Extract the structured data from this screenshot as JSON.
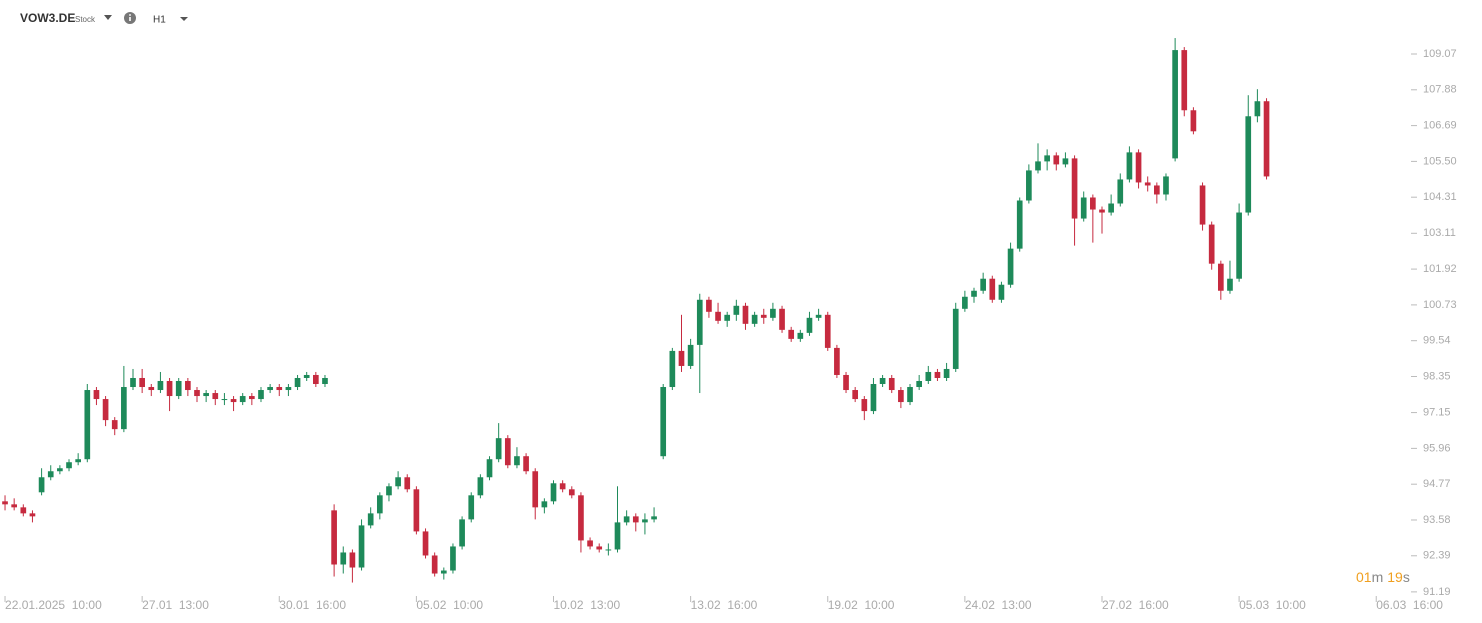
{
  "header": {
    "symbol": "VOW3.DE",
    "kind": "Stock",
    "timeframe": "H1",
    "countdown": {
      "minutes": "01",
      "minutes_unit": "m",
      "seconds": "19",
      "seconds_unit": "s"
    }
  },
  "chart_data": {
    "type": "candlestick",
    "up_color": "#1e8a5a",
    "down_color": "#c62a3f",
    "xlim": [
      -0.55,
      152.6
    ],
    "xticks": [
      {
        "value": 0,
        "label": "22.01.2025  10:00"
      },
      {
        "value": 15,
        "label": "27.01  13:00"
      },
      {
        "value": 30,
        "label": "30.01  16:00"
      },
      {
        "value": 45,
        "label": "05.02  10:00"
      },
      {
        "value": 60,
        "label": "10.02  13:00"
      },
      {
        "value": 75,
        "label": "13.02  16:00"
      },
      {
        "value": 90,
        "label": "19.02  10:00"
      },
      {
        "value": 105,
        "label": "24.02  13:00"
      },
      {
        "value": 120,
        "label": "27.02  16:00"
      },
      {
        "value": 135,
        "label": "05.03  10:00"
      },
      {
        "value": 150,
        "label": "06.03  16:00"
      }
    ],
    "ylim": [
      90.92,
      110.865
    ],
    "yticks": [
      109.07,
      107.88,
      106.69,
      {
        "value": 105.5,
        "label": "105.50"
      },
      104.31,
      103.11,
      101.92,
      100.73,
      99.54,
      98.35,
      97.15,
      95.96,
      94.77,
      93.58,
      92.39,
      91.19
    ],
    "open": [
      94.2,
      94.1,
      94.0,
      93.8,
      94.5,
      95.0,
      95.2,
      95.3,
      95.5,
      95.6,
      97.9,
      97.6,
      96.9,
      96.6,
      98.0,
      98.3,
      98.0,
      97.9,
      98.2,
      97.7,
      98.2,
      97.9,
      97.7,
      97.8,
      97.6,
      97.6,
      97.5,
      97.7,
      97.6,
      97.9,
      98.0,
      97.9,
      98.0,
      98.3,
      98.4,
      98.1,
      93.9,
      92.1,
      92.5,
      92.0,
      93.4,
      93.8,
      94.4,
      94.7,
      95.0,
      94.6,
      93.2,
      92.4,
      91.8,
      91.9,
      92.7,
      93.6,
      94.4,
      95.0,
      95.6,
      96.3,
      95.4,
      95.7,
      95.2,
      94.0,
      94.2,
      94.8,
      94.6,
      94.4,
      92.9,
      92.7,
      92.6,
      92.6,
      93.5,
      93.7,
      93.5,
      93.6,
      95.7,
      98.0,
      99.2,
      98.7,
      99.4,
      100.9,
      100.5,
      100.2,
      100.4,
      100.7,
      100.1,
      100.4,
      100.3,
      100.6,
      99.9,
      99.6,
      99.8,
      100.3,
      100.4,
      99.3,
      98.4,
      97.9,
      97.6,
      97.2,
      98.1,
      98.3,
      97.9,
      97.5,
      98.0,
      98.2,
      98.5,
      98.3,
      98.6,
      100.6,
      101.0,
      101.2,
      101.6,
      100.9,
      101.4,
      102.6,
      104.2,
      105.2,
      105.5,
      105.7,
      105.4,
      105.6,
      103.6,
      104.3,
      103.9,
      103.8,
      104.1,
      104.9,
      105.8,
      104.8,
      104.7,
      104.4,
      105.6,
      109.2,
      107.2,
      104.7,
      103.4,
      102.1,
      101.2,
      101.6,
      103.8,
      107.0,
      107.5
    ],
    "high": [
      94.4,
      94.3,
      94.1,
      93.9,
      95.3,
      95.4,
      95.4,
      95.6,
      95.8,
      98.1,
      98.0,
      97.7,
      97.0,
      98.7,
      98.6,
      98.6,
      98.1,
      98.5,
      98.3,
      98.3,
      98.3,
      98.0,
      97.9,
      97.9,
      97.8,
      97.7,
      97.8,
      97.8,
      98.0,
      98.1,
      98.1,
      98.1,
      98.4,
      98.5,
      98.5,
      98.4,
      94.1,
      92.7,
      92.6,
      93.6,
      94.0,
      94.5,
      94.8,
      95.2,
      95.1,
      94.7,
      93.3,
      92.5,
      92.0,
      92.8,
      93.7,
      94.5,
      95.1,
      95.7,
      96.8,
      96.4,
      96.0,
      95.8,
      95.3,
      94.3,
      94.9,
      94.9,
      94.7,
      94.5,
      93.0,
      92.8,
      92.8,
      94.7,
      93.9,
      93.8,
      93.8,
      94.0,
      98.1,
      99.3,
      100.4,
      99.6,
      101.1,
      101.0,
      100.8,
      100.5,
      100.9,
      100.8,
      100.5,
      100.6,
      100.8,
      100.7,
      100.0,
      99.9,
      100.5,
      100.6,
      100.5,
      99.4,
      98.5,
      98.0,
      97.7,
      98.3,
      98.4,
      98.4,
      98.0,
      98.1,
      98.4,
      98.7,
      98.6,
      98.8,
      100.8,
      101.2,
      101.3,
      101.8,
      101.7,
      101.5,
      102.8,
      104.3,
      105.4,
      106.1,
      105.9,
      105.8,
      105.8,
      105.7,
      104.5,
      104.4,
      104.0,
      104.4,
      105.1,
      106.0,
      105.9,
      105.0,
      104.8,
      105.1,
      109.6,
      109.3,
      107.3,
      104.8,
      103.5,
      102.2,
      102.2,
      104.1,
      107.7,
      107.9,
      107.6
    ],
    "low": [
      93.9,
      93.9,
      93.7,
      93.5,
      94.4,
      94.9,
      95.1,
      95.2,
      95.4,
      95.5,
      97.4,
      96.7,
      96.4,
      96.5,
      97.9,
      97.8,
      97.7,
      97.8,
      97.2,
      97.6,
      97.7,
      97.5,
      97.5,
      97.4,
      97.4,
      97.2,
      97.4,
      97.4,
      97.5,
      97.8,
      97.7,
      97.7,
      97.9,
      98.2,
      98.0,
      98.0,
      91.7,
      91.8,
      91.5,
      91.9,
      93.3,
      93.6,
      94.2,
      94.6,
      94.5,
      93.1,
      92.3,
      91.7,
      91.6,
      91.8,
      92.6,
      93.5,
      94.3,
      94.9,
      95.5,
      95.3,
      95.3,
      95.1,
      93.6,
      93.8,
      94.1,
      94.5,
      94.3,
      92.5,
      92.6,
      92.5,
      92.4,
      92.5,
      93.4,
      93.2,
      93.1,
      93.5,
      95.6,
      97.9,
      98.5,
      98.6,
      97.8,
      100.3,
      100.1,
      100.0,
      100.2,
      99.9,
      100.0,
      100.1,
      100.2,
      99.8,
      99.5,
      99.5,
      99.7,
      100.2,
      99.2,
      98.3,
      97.8,
      97.5,
      96.9,
      97.1,
      98.0,
      97.8,
      97.3,
      97.4,
      97.9,
      98.1,
      98.2,
      98.2,
      98.5,
      100.5,
      100.8,
      101.1,
      100.8,
      100.8,
      101.3,
      102.5,
      104.1,
      105.1,
      105.2,
      105.2,
      105.3,
      102.7,
      103.5,
      102.8,
      103.1,
      103.7,
      104.0,
      104.8,
      104.6,
      104.5,
      104.1,
      104.2,
      105.5,
      107.0,
      106.4,
      103.2,
      101.9,
      100.9,
      101.1,
      101.5,
      103.7,
      106.8,
      104.9
    ],
    "close": [
      94.1,
      94.0,
      93.8,
      93.7,
      95.0,
      95.2,
      95.3,
      95.5,
      95.6,
      97.9,
      97.6,
      96.9,
      96.6,
      98.0,
      98.3,
      98.0,
      97.9,
      98.2,
      97.7,
      98.2,
      97.9,
      97.7,
      97.8,
      97.6,
      97.6,
      97.5,
      97.7,
      97.6,
      97.9,
      98.0,
      97.9,
      98.0,
      98.3,
      98.4,
      98.1,
      98.3,
      92.1,
      92.5,
      92.0,
      93.4,
      93.8,
      94.4,
      94.7,
      95.0,
      94.6,
      93.2,
      92.4,
      91.8,
      91.9,
      92.7,
      93.6,
      94.4,
      95.0,
      95.6,
      96.3,
      95.4,
      95.7,
      95.2,
      94.0,
      94.2,
      94.8,
      94.6,
      94.4,
      92.9,
      92.7,
      92.6,
      92.6,
      93.5,
      93.7,
      93.5,
      93.6,
      93.7,
      98.0,
      99.2,
      98.7,
      99.4,
      100.9,
      100.5,
      100.2,
      100.4,
      100.7,
      100.1,
      100.4,
      100.3,
      100.6,
      99.9,
      99.6,
      99.8,
      100.3,
      100.4,
      99.3,
      98.4,
      97.9,
      97.6,
      97.2,
      98.1,
      98.3,
      97.9,
      97.5,
      98.0,
      98.2,
      98.5,
      98.3,
      98.6,
      100.6,
      101.0,
      101.2,
      101.6,
      100.9,
      101.4,
      102.6,
      104.2,
      105.2,
      105.5,
      105.7,
      105.4,
      105.6,
      103.6,
      104.3,
      103.9,
      103.8,
      104.1,
      104.9,
      105.8,
      104.8,
      104.7,
      104.4,
      105.0,
      109.2,
      107.2,
      106.5,
      103.4,
      102.1,
      101.2,
      101.6,
      103.8,
      107.0,
      107.5,
      105.0
    ]
  }
}
